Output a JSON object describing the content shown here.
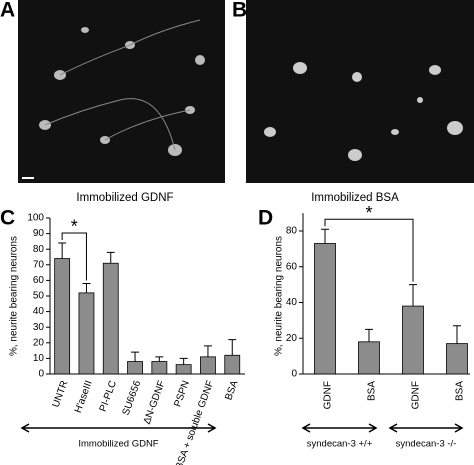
{
  "panels": {
    "a": {
      "letter": "A",
      "caption": "Immobilized GDNF"
    },
    "b": {
      "letter": "B",
      "caption": "Immobilized BSA"
    }
  },
  "chart_data": [
    {
      "type": "bar",
      "letter": "C",
      "ylabel": "%, neurite bearing neurons",
      "categories": [
        "UNTR",
        "H'aseIII",
        "PI-PLC",
        "SU6656",
        "ΔN-GDNF",
        "PSPN",
        "BSA + soluble GDNF",
        "BSA"
      ],
      "values": [
        74,
        52,
        71,
        8,
        8,
        6,
        11,
        12
      ],
      "errors": [
        10,
        6,
        7,
        6,
        3,
        4,
        7,
        10
      ],
      "color": "#8c8c8c",
      "ylim": [
        0,
        100
      ],
      "yticks": [
        0,
        10,
        20,
        30,
        40,
        50,
        60,
        70,
        80,
        90,
        100
      ],
      "annotation": "*",
      "groups": [
        "Immobilized GDNF"
      ]
    },
    {
      "type": "bar",
      "letter": "D",
      "ylabel": "%, neurite bearing neurons",
      "categories": [
        "GDNF",
        "BSA",
        "GDNF",
        "BSA"
      ],
      "values": [
        73,
        18,
        38,
        17
      ],
      "errors": [
        8,
        7,
        12,
        10
      ],
      "color": "#8c8c8c",
      "ylim": [
        0,
        90
      ],
      "yticks": [
        0,
        20,
        40,
        60,
        80
      ],
      "annotation": "*",
      "groups": [
        "syndecan-3 +/+",
        "syndecan-3 -/-"
      ]
    }
  ]
}
